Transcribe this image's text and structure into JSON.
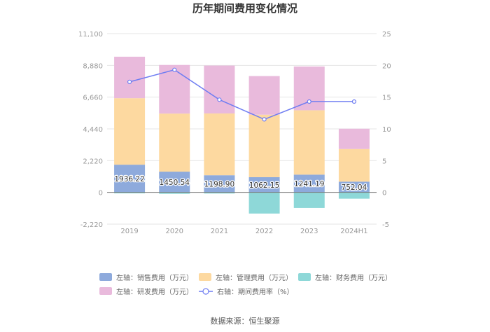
{
  "chart_data": {
    "type": "bar",
    "title": "历年期间费用变化情况",
    "categories": [
      "2019",
      "2020",
      "2021",
      "2022",
      "2023",
      "2024H1"
    ],
    "left_axis": {
      "ticks": [
        "11,100",
        "8,880",
        "6,660",
        "4,440",
        "2,220",
        "0",
        "-2,220"
      ],
      "ylim": [
        -2220,
        11100
      ]
    },
    "right_axis": {
      "ticks": [
        "25",
        "20",
        "15",
        "10",
        "5",
        "0",
        "-5"
      ],
      "ylim": [
        -5,
        25
      ]
    },
    "series": [
      {
        "name": "左轴：销售费用（万元）",
        "color": "#8eaadc",
        "values": [
          1936.22,
          1450.54,
          1198.9,
          1062.15,
          1241.19,
          752.04
        ]
      },
      {
        "name": "左轴：管理费用（万元）",
        "color": "#fdd9a0",
        "values": [
          4650,
          4060,
          4320,
          4370,
          4500,
          2280
        ]
      },
      {
        "name": "左轴：财务费用（万元）",
        "color": "#8ed8d8",
        "values": [
          -70,
          -100,
          -80,
          -1480,
          -1090,
          -440
        ]
      },
      {
        "name": "左轴：研发费用（万元）",
        "color": "#e9badc",
        "values": [
          2900,
          3400,
          3350,
          2700,
          3060,
          1420
        ]
      }
    ],
    "line": {
      "name": "右轴：期间费用率（%）",
      "color": "#6f7df2",
      "values": [
        17.4,
        19.3,
        14.6,
        11.5,
        14.3,
        14.3
      ]
    },
    "value_labels": [
      "1936.22",
      "1450.54",
      "1198.90",
      "1062.15",
      "1241.19",
      "752.04"
    ]
  },
  "source": "数据来源：恒生聚源"
}
